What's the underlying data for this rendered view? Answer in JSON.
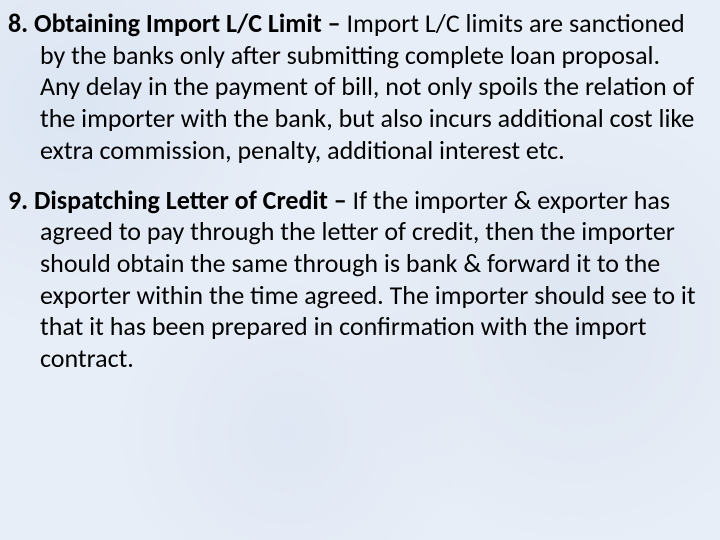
{
  "background_color": "#e8eef7",
  "text_color": "#000000",
  "font_family": "Calibri",
  "font_size_pt": 20,
  "line_height": 1.22,
  "entries": [
    {
      "heading": "8. Obtaining Import L/C Limit – ",
      "body": "Import L/C limits are sanctioned by the banks only after submitting complete loan proposal. Any delay in the payment of bill, not only spoils the relation of the importer with the bank, but also incurs additional cost like extra commission, penalty, additional interest etc."
    },
    {
      "heading": "9. Dispatching Letter of Credit – ",
      "body": "If the importer & exporter has agreed to pay through the letter of credit, then the importer should obtain the same through is bank & forward it to the exporter within the time agreed. The importer should see to it that it has been prepared in confirmation with the import contract."
    }
  ]
}
